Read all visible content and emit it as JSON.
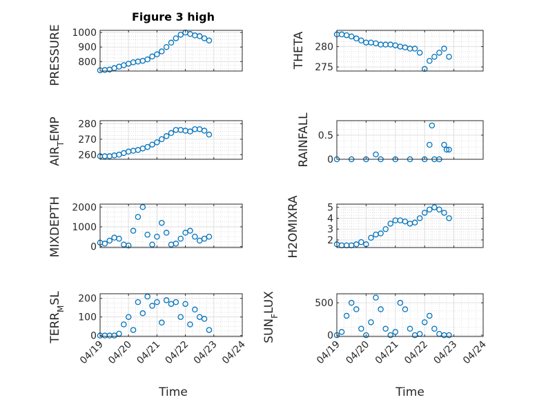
{
  "figure": {
    "title": "Figure 3 high",
    "xlabel": "Time",
    "x_tick_labels": [
      "04/19",
      "04/20",
      "04/21",
      "04/22",
      "04/23",
      "04/24"
    ],
    "marker_color": "#0072BD",
    "grid": true
  },
  "chart_data": [
    {
      "type": "scatter",
      "id": "pressure",
      "title": "Figure 3 high",
      "ylabel": "PRESSURE",
      "ylim": [
        735,
        1015
      ],
      "yticks": [
        800,
        900,
        1000
      ],
      "xlim": [
        "04/19",
        "04/24"
      ],
      "x_tick_labels": [],
      "series": [
        {
          "x": [
            "04/19 00:00",
            "04/19 04:00",
            "04/19 08:00",
            "04/19 12:00",
            "04/19 16:00",
            "04/19 20:00",
            "04/20 00:00",
            "04/20 04:00",
            "04/20 08:00",
            "04/20 12:00",
            "04/20 16:00",
            "04/20 20:00",
            "04/21 00:00",
            "04/21 04:00",
            "04/21 08:00",
            "04/21 12:00",
            "04/21 16:00",
            "04/21 20:00",
            "04/22 00:00",
            "04/22 04:00",
            "04/22 08:00",
            "04/22 12:00",
            "04/22 16:00",
            "04/22 20:00"
          ],
          "y": [
            740,
            742,
            745,
            755,
            765,
            775,
            785,
            795,
            800,
            805,
            815,
            835,
            850,
            870,
            900,
            930,
            960,
            985,
            1000,
            990,
            980,
            975,
            960,
            945
          ]
        }
      ]
    },
    {
      "type": "scatter",
      "id": "theta",
      "ylabel": "THETA",
      "ylim": [
        274,
        284
      ],
      "yticks": [
        275,
        280
      ],
      "xlim": [
        "04/19",
        "04/24"
      ],
      "x_tick_labels": [],
      "series": [
        {
          "x": [
            "04/19 00:00",
            "04/19 04:00",
            "04/19 08:00",
            "04/19 12:00",
            "04/19 16:00",
            "04/19 20:00",
            "04/20 00:00",
            "04/20 04:00",
            "04/20 08:00",
            "04/20 12:00",
            "04/20 16:00",
            "04/20 20:00",
            "04/21 00:00",
            "04/21 04:00",
            "04/21 08:00",
            "04/21 12:00",
            "04/21 16:00",
            "04/21 20:00",
            "04/22 00:00",
            "04/22 04:00",
            "04/22 08:00",
            "04/22 12:00",
            "04/22 16:00",
            "04/22 20:00"
          ],
          "y": [
            283,
            283,
            282.8,
            282.5,
            282,
            281.5,
            281,
            281,
            280.8,
            280.5,
            280.5,
            280.5,
            280.3,
            280,
            279.8,
            279.5,
            279.5,
            278.5,
            274.5,
            276.5,
            277.5,
            278.5,
            279.5,
            277.5
          ]
        }
      ]
    },
    {
      "type": "scatter",
      "id": "air_temp",
      "ylabel": "AIR_TEMP",
      "ylim": [
        257,
        282
      ],
      "yticks": [
        260,
        270,
        280
      ],
      "xlim": [
        "04/19",
        "04/24"
      ],
      "x_tick_labels": [],
      "series": [
        {
          "x": [
            "04/19 00:00",
            "04/19 04:00",
            "04/19 08:00",
            "04/19 12:00",
            "04/19 16:00",
            "04/19 20:00",
            "04/20 00:00",
            "04/20 04:00",
            "04/20 08:00",
            "04/20 12:00",
            "04/20 16:00",
            "04/20 20:00",
            "04/21 00:00",
            "04/21 04:00",
            "04/21 08:00",
            "04/21 12:00",
            "04/21 16:00",
            "04/21 20:00",
            "04/22 00:00",
            "04/22 04:00",
            "04/22 08:00",
            "04/22 12:00",
            "04/22 16:00",
            "04/22 20:00"
          ],
          "y": [
            259,
            259,
            259,
            259.5,
            260,
            261,
            262,
            262.5,
            263,
            264,
            265,
            266.5,
            268,
            270,
            272,
            274,
            276,
            276,
            275.5,
            275,
            276.5,
            276.5,
            275.5,
            273
          ]
        }
      ]
    },
    {
      "type": "scatter",
      "id": "rainfall",
      "ylabel": "RAINFALL",
      "ylim": [
        0,
        0.8
      ],
      "yticks": [
        0,
        0.5
      ],
      "xlim": [
        "04/19",
        "04/24"
      ],
      "x_tick_labels": [],
      "series": [
        {
          "x": [
            "04/19 00:00",
            "04/19 12:00",
            "04/20 00:00",
            "04/20 08:00",
            "04/20 12:00",
            "04/21 00:00",
            "04/21 12:00",
            "04/22 00:00",
            "04/22 04:00",
            "04/22 06:00",
            "04/22 08:00",
            "04/22 12:00",
            "04/22 16:00",
            "04/22 18:00",
            "04/22 20:00"
          ],
          "y": [
            0,
            0,
            0,
            0.1,
            0,
            0,
            0,
            0,
            0.3,
            0.7,
            0,
            0,
            0.3,
            0.2,
            0.2
          ]
        }
      ]
    },
    {
      "type": "scatter",
      "id": "mixdepth",
      "ylabel": "MIXDEPTH",
      "ylim": [
        -50,
        2150
      ],
      "yticks": [
        0,
        1000,
        2000
      ],
      "xlim": [
        "04/19",
        "04/24"
      ],
      "x_tick_labels": [],
      "series": [
        {
          "x": [
            "04/19 00:00",
            "04/19 04:00",
            "04/19 08:00",
            "04/19 12:00",
            "04/19 16:00",
            "04/19 20:00",
            "04/20 00:00",
            "04/20 04:00",
            "04/20 08:00",
            "04/20 12:00",
            "04/20 16:00",
            "04/20 20:00",
            "04/21 00:00",
            "04/21 04:00",
            "04/21 08:00",
            "04/21 12:00",
            "04/21 16:00",
            "04/21 20:00",
            "04/22 00:00",
            "04/22 04:00",
            "04/22 08:00",
            "04/22 12:00",
            "04/22 16:00",
            "04/22 20:00"
          ],
          "y": [
            200,
            150,
            300,
            450,
            400,
            100,
            50,
            800,
            1500,
            2000,
            600,
            100,
            500,
            1200,
            700,
            100,
            150,
            400,
            700,
            800,
            500,
            300,
            400,
            500
          ]
        }
      ]
    },
    {
      "type": "scatter",
      "id": "h2omixra",
      "ylabel": "H2OMIXRA",
      "ylim": [
        1.3,
        5.3
      ],
      "yticks": [
        2,
        3,
        4,
        5
      ],
      "xlim": [
        "04/19",
        "04/24"
      ],
      "x_tick_labels": [],
      "series": [
        {
          "x": [
            "04/19 00:00",
            "04/19 04:00",
            "04/19 08:00",
            "04/19 12:00",
            "04/19 16:00",
            "04/19 20:00",
            "04/20 00:00",
            "04/20 04:00",
            "04/20 08:00",
            "04/20 12:00",
            "04/20 16:00",
            "04/20 20:00",
            "04/21 00:00",
            "04/21 04:00",
            "04/21 08:00",
            "04/21 12:00",
            "04/21 16:00",
            "04/21 20:00",
            "04/22 00:00",
            "04/22 04:00",
            "04/22 08:00",
            "04/22 12:00",
            "04/22 16:00",
            "04/22 20:00"
          ],
          "y": [
            1.6,
            1.5,
            1.5,
            1.5,
            1.6,
            1.8,
            1.6,
            2.2,
            2.5,
            2.6,
            3.0,
            3.5,
            3.8,
            3.8,
            3.7,
            3.5,
            3.6,
            4.0,
            4.5,
            4.8,
            5.0,
            4.8,
            4.5,
            4.0
          ]
        }
      ]
    },
    {
      "type": "scatter",
      "id": "terr_msl",
      "ylabel": "TERR_MSL",
      "ylim": [
        -5,
        225
      ],
      "yticks": [
        0,
        100,
        200
      ],
      "xlim": [
        "04/19",
        "04/24"
      ],
      "x_tick_labels": [
        "04/19",
        "04/20",
        "04/21",
        "04/22",
        "04/23",
        "04/24"
      ],
      "series": [
        {
          "x": [
            "04/19 00:00",
            "04/19 04:00",
            "04/19 08:00",
            "04/19 12:00",
            "04/19 16:00",
            "04/19 20:00",
            "04/20 00:00",
            "04/20 04:00",
            "04/20 08:00",
            "04/20 12:00",
            "04/20 16:00",
            "04/20 20:00",
            "04/21 00:00",
            "04/21 04:00",
            "04/21 08:00",
            "04/21 12:00",
            "04/21 16:00",
            "04/21 20:00",
            "04/22 00:00",
            "04/22 04:00",
            "04/22 08:00",
            "04/22 12:00",
            "04/22 16:00",
            "04/22 20:00"
          ],
          "y": [
            0,
            0,
            0,
            0,
            10,
            60,
            100,
            30,
            180,
            120,
            210,
            160,
            180,
            70,
            190,
            170,
            180,
            100,
            170,
            60,
            140,
            100,
            90,
            30
          ]
        }
      ]
    },
    {
      "type": "scatter",
      "id": "sun_flux",
      "ylabel": "SUN_FLUX",
      "ylim": [
        -20,
        640
      ],
      "yticks": [
        0,
        500
      ],
      "xlim": [
        "04/19",
        "04/24"
      ],
      "x_tick_labels": [
        "04/19",
        "04/20",
        "04/21",
        "04/22",
        "04/23",
        "04/24"
      ],
      "series": [
        {
          "x": [
            "04/19 00:00",
            "04/19 04:00",
            "04/19 08:00",
            "04/19 12:00",
            "04/19 16:00",
            "04/19 20:00",
            "04/20 00:00",
            "04/20 04:00",
            "04/20 08:00",
            "04/20 12:00",
            "04/20 16:00",
            "04/20 20:00",
            "04/21 00:00",
            "04/21 04:00",
            "04/21 08:00",
            "04/21 12:00",
            "04/21 16:00",
            "04/21 20:00",
            "04/22 00:00",
            "04/22 04:00",
            "04/22 08:00",
            "04/22 12:00",
            "04/22 16:00",
            "04/22 20:00"
          ],
          "y": [
            0,
            50,
            300,
            500,
            400,
            100,
            0,
            200,
            580,
            400,
            100,
            0,
            50,
            500,
            400,
            100,
            0,
            20,
            200,
            300,
            100,
            20,
            0,
            0
          ]
        }
      ]
    }
  ]
}
